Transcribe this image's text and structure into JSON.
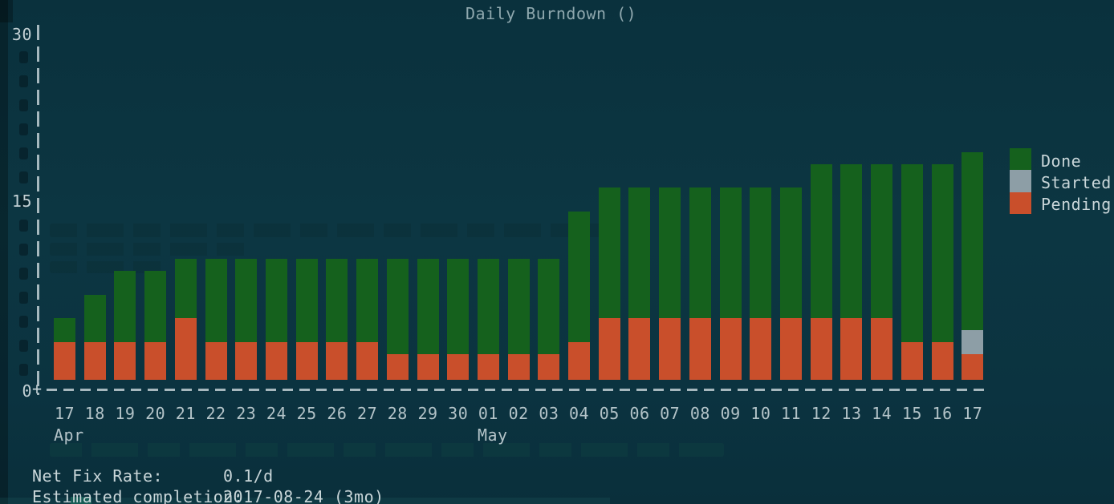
{
  "title": "Daily Burndown ()",
  "axis_origin": "+",
  "colors": {
    "background": "#0b3340",
    "done": "#15611d",
    "started": "#8d9ea6",
    "pending": "#c94f2b",
    "axis": "#c2d0d4",
    "text": "#c5d3d6",
    "title_text": "#8fa8ae"
  },
  "y_axis": {
    "ticks": [
      {
        "label": "30",
        "value": 30
      },
      {
        "label": "15",
        "value": 15
      },
      {
        "label": "0",
        "value": 0
      }
    ],
    "max": 30
  },
  "x_axis": {
    "month_labels": [
      {
        "label": "Apr",
        "bar_index": 0
      },
      {
        "label": "May",
        "bar_index": 14
      }
    ]
  },
  "legend": [
    {
      "label": "Done",
      "color_key": "done"
    },
    {
      "label": "Started",
      "color_key": "started"
    },
    {
      "label": "Pending",
      "color_key": "pending"
    }
  ],
  "stats": [
    {
      "label": "Net Fix Rate:",
      "value": "0.1/d"
    },
    {
      "label": "Estimated completion:",
      "value": "2017-08-24 (3mo)"
    }
  ],
  "chart_data": {
    "type": "bar",
    "stacked": true,
    "title": "Daily Burndown ()",
    "xlabel": "",
    "ylabel": "",
    "ylim": [
      0,
      30
    ],
    "legend_position": "right",
    "grid": false,
    "categories": [
      "17",
      "18",
      "19",
      "20",
      "21",
      "22",
      "23",
      "24",
      "25",
      "26",
      "27",
      "28",
      "29",
      "30",
      "01",
      "02",
      "03",
      "04",
      "05",
      "06",
      "07",
      "08",
      "09",
      "10",
      "11",
      "12",
      "13",
      "14",
      "15",
      "16",
      "17"
    ],
    "category_months": {
      "Apr": [
        "17",
        "18",
        "19",
        "20",
        "21",
        "22",
        "23",
        "24",
        "25",
        "26",
        "27",
        "28",
        "29",
        "30"
      ],
      "May": [
        "01",
        "02",
        "03",
        "04",
        "05",
        "06",
        "07",
        "08",
        "09",
        "10",
        "11",
        "12",
        "13",
        "14",
        "15",
        "16",
        "17"
      ]
    },
    "series": [
      {
        "name": "Pending",
        "values": [
          4,
          4,
          4,
          4,
          6,
          4,
          4,
          4,
          4,
          4,
          4,
          3,
          3,
          3,
          3,
          3,
          3,
          4,
          6,
          6,
          6,
          6,
          6,
          6,
          6,
          6,
          6,
          6,
          4,
          4,
          3
        ]
      },
      {
        "name": "Started",
        "values": [
          0,
          0,
          0,
          0,
          0,
          0,
          0,
          0,
          0,
          0,
          0,
          0,
          0,
          0,
          0,
          0,
          0,
          0,
          0,
          0,
          0,
          0,
          0,
          0,
          0,
          0,
          0,
          0,
          0,
          0,
          2
        ]
      },
      {
        "name": "Done",
        "values": [
          2,
          4,
          6,
          6,
          5,
          7,
          7,
          7,
          7,
          7,
          7,
          8,
          8,
          8,
          8,
          8,
          8,
          11,
          11,
          11,
          11,
          11,
          11,
          11,
          11,
          13,
          13,
          13,
          15,
          15,
          15
        ]
      }
    ]
  }
}
